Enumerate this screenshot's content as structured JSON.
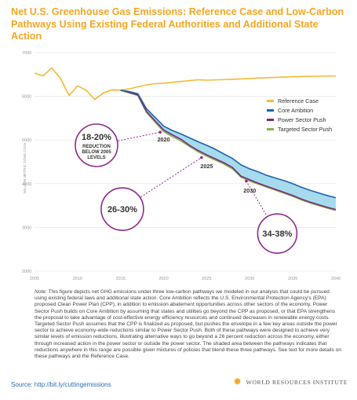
{
  "title": "Net U.S. Greenhouse Gas Emissions: Reference Case and Low-Carbon Pathways Using Existing Federal Authorities and Additional State Action",
  "note_label": "Note:",
  "note_text": "This figure depicts net GHG emissions under three low-carbon pathways we modeled in our analysis that could be pursued using existing federal laws and additional state action. Core Ambition reflects the U.S. Environmental Protection Agency's (EPA) proposed Clean Power Plan (CPP), in addition to emission abatement opportunities across other sectors of the economy. Power Sector Push builds on Core Ambition by assuming that states and utilities go beyond the CPP as proposed, or that EPA strengthens the proposal to take advantage of cost-effective energy efficiency resources and continued decreases in renewable energy costs. Targeted Sector Push assumes that the CPP is finalized as proposed, but pushes the envelope in a few key areas outside the power sector to achieve economy-wide reductions similar to Power Sector Push. Both of these pathways were designed to achieve very similar levels of emission reductions, illustrating alternative ways to go beyond a 26 percent reduction across the economy, either through increased action in the power sector or outside the power sector. The shaded area between the pathways indicates that reductions anywhere in this range are possible given mixtures of policies that blend these three pathways.  See text for more details on these pathways and the Reference Case.",
  "source": "Source: http://bit.ly/cuttingemissions",
  "logo_text": "WORLD RESOURCES INSTITUTE",
  "colors": {
    "reference": "#f5b93a",
    "core": "#1e64ad",
    "power": "#7b2a7b",
    "targeted": "#8ab34a",
    "shade": "#a6dbee",
    "callout": "#8e2a8e",
    "grid": "#e2e2e2"
  },
  "chart_data": {
    "type": "line",
    "ylabel": "MILLION METRIC TONS CO2e",
    "xlim": [
      2005,
      2040
    ],
    "ylim": [
      2000,
      7000
    ],
    "x_ticks": [
      2005,
      2010,
      2015,
      2020,
      2025,
      2030,
      2035,
      2040
    ],
    "y_ticks": [
      2000,
      3000,
      4000,
      5000,
      6000,
      7000
    ],
    "legend_position": "right",
    "historical": {
      "x": [
        2005,
        2006,
        2007,
        2008,
        2009,
        2010,
        2011,
        2012,
        2013,
        2014,
        2015
      ],
      "y": [
        6530,
        6470,
        6650,
        6420,
        6020,
        6240,
        6140,
        5930,
        6080,
        6150,
        6140
      ]
    },
    "series": [
      {
        "name": "Reference Case",
        "x": [
          2012,
          2013,
          2014,
          2015,
          2016,
          2017,
          2018,
          2019,
          2020,
          2022,
          2024,
          2025,
          2028,
          2030,
          2035,
          2040
        ],
        "y": [
          5930,
          6080,
          6150,
          6140,
          6170,
          6220,
          6260,
          6290,
          6300,
          6340,
          6380,
          6370,
          6390,
          6410,
          6450,
          6470
        ]
      },
      {
        "name": "Core Ambition",
        "x": [
          2015,
          2016,
          2017,
          2018,
          2019,
          2020,
          2021,
          2022,
          2023,
          2024,
          2025,
          2026,
          2027,
          2028,
          2029,
          2030,
          2031,
          2032,
          2033,
          2034,
          2035,
          2036,
          2037,
          2038,
          2039,
          2040
        ],
        "y": [
          6140,
          6110,
          6060,
          5720,
          5520,
          5320,
          5220,
          5140,
          5050,
          4960,
          4880,
          4790,
          4680,
          4580,
          4430,
          4340,
          4270,
          4190,
          4130,
          4070,
          4000,
          3920,
          3850,
          3790,
          3730,
          3680
        ]
      },
      {
        "name": "Power Sector Push",
        "x": [
          2015,
          2016,
          2017,
          2018,
          2019,
          2020,
          2021,
          2022,
          2023,
          2024,
          2025,
          2026,
          2027,
          2028,
          2029,
          2030,
          2031,
          2032,
          2033,
          2034,
          2035,
          2036,
          2037,
          2038,
          2039,
          2040
        ],
        "y": [
          6140,
          6090,
          6030,
          5660,
          5440,
          5230,
          5120,
          5020,
          4880,
          4760,
          4660,
          4570,
          4480,
          4370,
          4170,
          4090,
          4010,
          3940,
          3870,
          3800,
          3730,
          3650,
          3580,
          3520,
          3460,
          3410
        ]
      },
      {
        "name": "Targeted Sector Push",
        "x": [
          2015,
          2016,
          2017,
          2018,
          2019,
          2020,
          2021,
          2022,
          2023,
          2024,
          2025,
          2026,
          2027,
          2028,
          2029,
          2030,
          2031,
          2032,
          2033,
          2034,
          2035,
          2036,
          2037,
          2038,
          2039,
          2040
        ],
        "y": [
          6140,
          6080,
          6020,
          5630,
          5410,
          5190,
          5080,
          4980,
          4850,
          4730,
          4630,
          4540,
          4450,
          4340,
          4150,
          4060,
          3990,
          3920,
          3850,
          3780,
          3710,
          3630,
          3560,
          3500,
          3440,
          3390
        ]
      }
    ],
    "year_labels": [
      {
        "text": "2020",
        "x": 2020,
        "y": 4970
      },
      {
        "text": "2025",
        "x": 2025,
        "y": 4360
      },
      {
        "text": "2030",
        "x": 2030,
        "y": 3800
      }
    ],
    "callouts": [
      {
        "text": "18-20%",
        "sub": [
          "REDUCTION",
          "BELOW 2005",
          "LEVELS"
        ],
        "x": 2012.2,
        "y": 4880,
        "target_x": 2019.6,
        "target_y": 5180
      },
      {
        "text": "26-30%",
        "sub": [],
        "x": 2015.2,
        "y": 3420,
        "target_x": 2024.4,
        "target_y": 4600
      },
      {
        "text": "34-38%",
        "sub": [],
        "x": 2033.2,
        "y": 2860,
        "target_x": 2029.6,
        "target_y": 4060
      }
    ]
  }
}
